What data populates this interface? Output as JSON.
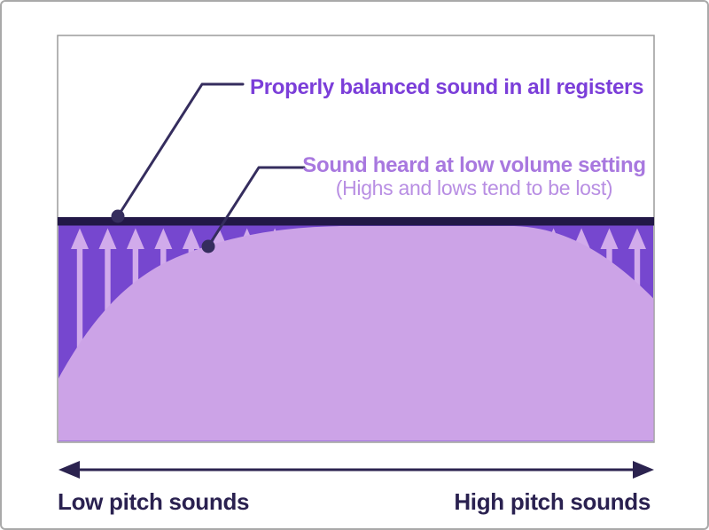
{
  "diagram": {
    "annotations": {
      "balanced": {
        "label": "Properly balanced sound in all registers"
      },
      "low_volume": {
        "label": "Sound heard at low volume setting",
        "sublabel": "(Highs and lows tend to be lost)"
      }
    },
    "axis": {
      "left_label": "Low pitch sounds",
      "right_label": "High pitch sounds"
    },
    "colors": {
      "balanced_bar": "#221847",
      "lost_region": "#7647cf",
      "heard_region": "#cca3e7",
      "boost_arrow": "#d1abeb",
      "leader": "#352d5e",
      "balanced_text": "#7b3ed9",
      "low_volume_text": "#a878df",
      "low_volume_subtext": "#b88ee3",
      "axis_text": "#2a2150",
      "frame_border": "#a9a9a9"
    }
  }
}
